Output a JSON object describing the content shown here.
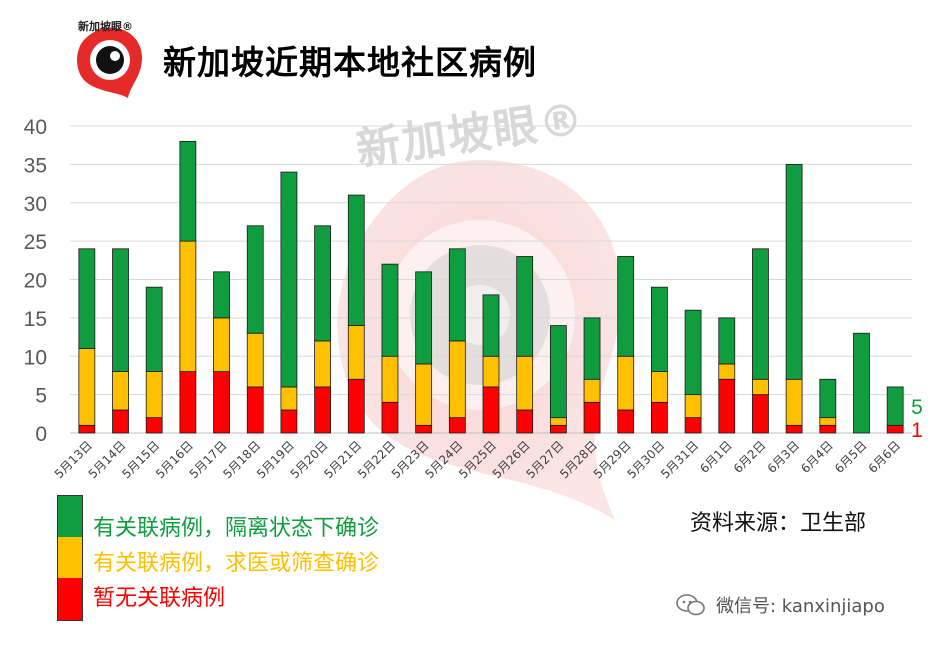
{
  "title": "新加坡近期本地社区病例",
  "logo": {
    "text": "新加坡眼®"
  },
  "watermark": "新加坡眼®",
  "source": "资料来源：卫生部",
  "wechat": "微信号: kanxinjiapo",
  "colors": {
    "linked_quarantined": "#0f9d3f",
    "linked_detected": "#ffc000",
    "unlinked": "#ff0000",
    "grid": "#d9d9d9",
    "axis_text": "#595959"
  },
  "chart_data": {
    "type": "bar",
    "stacked": true,
    "categories": [
      "5月13日",
      "5月14日",
      "5月15日",
      "5月16日",
      "5月17日",
      "5月18日",
      "5月19日",
      "5月20日",
      "5月21日",
      "5月22日",
      "5月23日",
      "5月24日",
      "5月25日",
      "5月26日",
      "5月27日",
      "5月28日",
      "5月29日",
      "5月30日",
      "5月31日",
      "6月1日",
      "6月2日",
      "6月3日",
      "6月4日",
      "6月5日",
      "6月6日"
    ],
    "series": [
      {
        "name": "暂无关联病例",
        "color": "#ff0000",
        "values": [
          1,
          3,
          2,
          8,
          8,
          6,
          3,
          6,
          7,
          4,
          1,
          2,
          6,
          3,
          1,
          4,
          3,
          4,
          2,
          7,
          5,
          1,
          1,
          0,
          1
        ]
      },
      {
        "name": "有关联病例，求医或筛查确诊",
        "color": "#ffc000",
        "values": [
          10,
          5,
          6,
          17,
          7,
          7,
          3,
          6,
          7,
          6,
          8,
          10,
          4,
          7,
          1,
          3,
          7,
          4,
          3,
          2,
          2,
          6,
          1,
          0,
          0
        ]
      },
      {
        "name": "有关联病例，隔离状态下确诊",
        "color": "#0f9d3f",
        "values": [
          13,
          16,
          11,
          13,
          6,
          14,
          28,
          15,
          17,
          12,
          12,
          12,
          8,
          13,
          12,
          8,
          13,
          11,
          11,
          6,
          17,
          28,
          5,
          13,
          5
        ]
      }
    ],
    "ylim": [
      0,
      40
    ],
    "yticks": [
      0,
      5,
      10,
      15,
      20,
      25,
      30,
      35,
      40
    ],
    "annotations": [
      {
        "text": "5",
        "series": "有关联病例，隔离状态下确诊",
        "color": "#0f9d3f"
      },
      {
        "text": "1",
        "series": "暂无关联病例",
        "color": "#ff0000"
      }
    ],
    "legend": [
      {
        "label": "有关联病例，隔离状态下确诊",
        "color": "#0f9d3f"
      },
      {
        "label": "有关联病例，求医或筛查确诊",
        "color": "#ffc000"
      },
      {
        "label": "暂无关联病例",
        "color": "#ff0000"
      }
    ],
    "grid": true
  }
}
